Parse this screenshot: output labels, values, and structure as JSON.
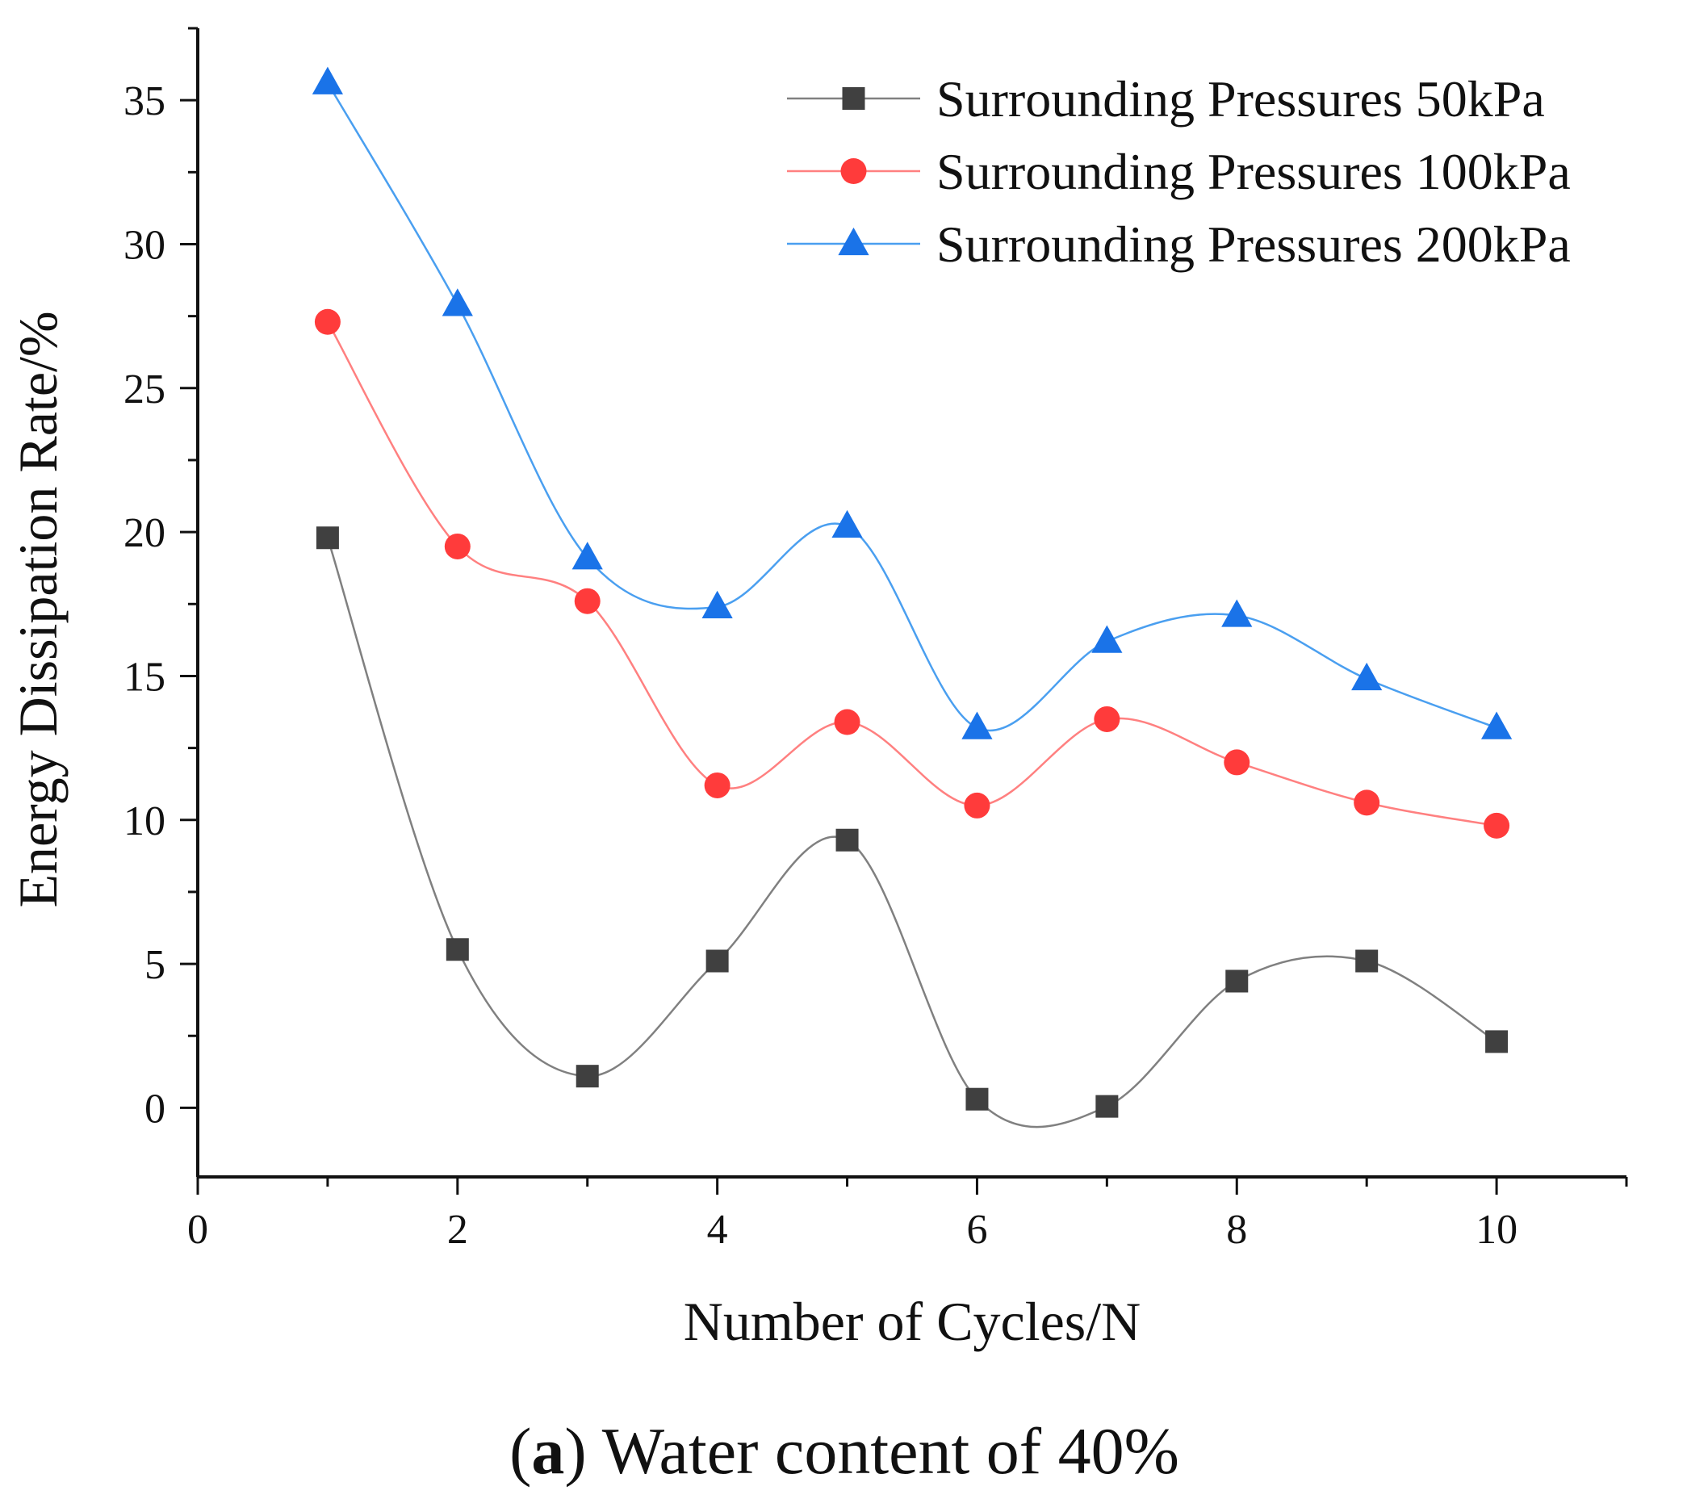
{
  "chart_data": {
    "type": "line",
    "xlabel": "Number of Cycles/N",
    "ylabel": "Energy Dissipation Rate/%",
    "xlim": [
      0,
      11
    ],
    "ylim": [
      -2.4,
      37.5
    ],
    "x_ticks": [
      "0",
      "2",
      "4",
      "6",
      "8",
      "10"
    ],
    "y_ticks": [
      "0",
      "5",
      "10",
      "15",
      "20",
      "25",
      "30",
      "35"
    ],
    "x_tick_values": [
      0,
      2,
      4,
      6,
      8,
      10
    ],
    "y_tick_values": [
      0,
      5,
      10,
      15,
      20,
      25,
      30,
      35
    ],
    "grid": false,
    "legend_position": "top-right",
    "smoothed": true,
    "x": [
      1,
      2,
      3,
      4,
      5,
      6,
      7,
      8,
      9,
      10
    ],
    "series": [
      {
        "name": "Surrounding Pressures 50kPa",
        "marker": "square",
        "color": "#404040",
        "line_color": "#808080",
        "values": [
          19.8,
          5.5,
          1.1,
          5.1,
          9.3,
          0.3,
          0.05,
          4.4,
          5.1,
          2.3
        ]
      },
      {
        "name": "Surrounding Pressures 100kPa",
        "marker": "circle",
        "color": "#ff3b3b",
        "line_color": "#ff8080",
        "values": [
          27.3,
          19.5,
          17.6,
          11.2,
          13.4,
          10.5,
          13.5,
          12.0,
          10.6,
          9.8
        ]
      },
      {
        "name": "Surrounding Pressures 200kPa",
        "marker": "triangle",
        "color": "#1a73e8",
        "line_color": "#4a9ff0",
        "values": [
          35.6,
          27.9,
          19.1,
          17.4,
          20.2,
          13.2,
          16.2,
          17.1,
          14.9,
          13.2
        ]
      }
    ]
  },
  "caption": {
    "prefix": "(",
    "letter": "a",
    "text": ") Water content of 40%"
  }
}
